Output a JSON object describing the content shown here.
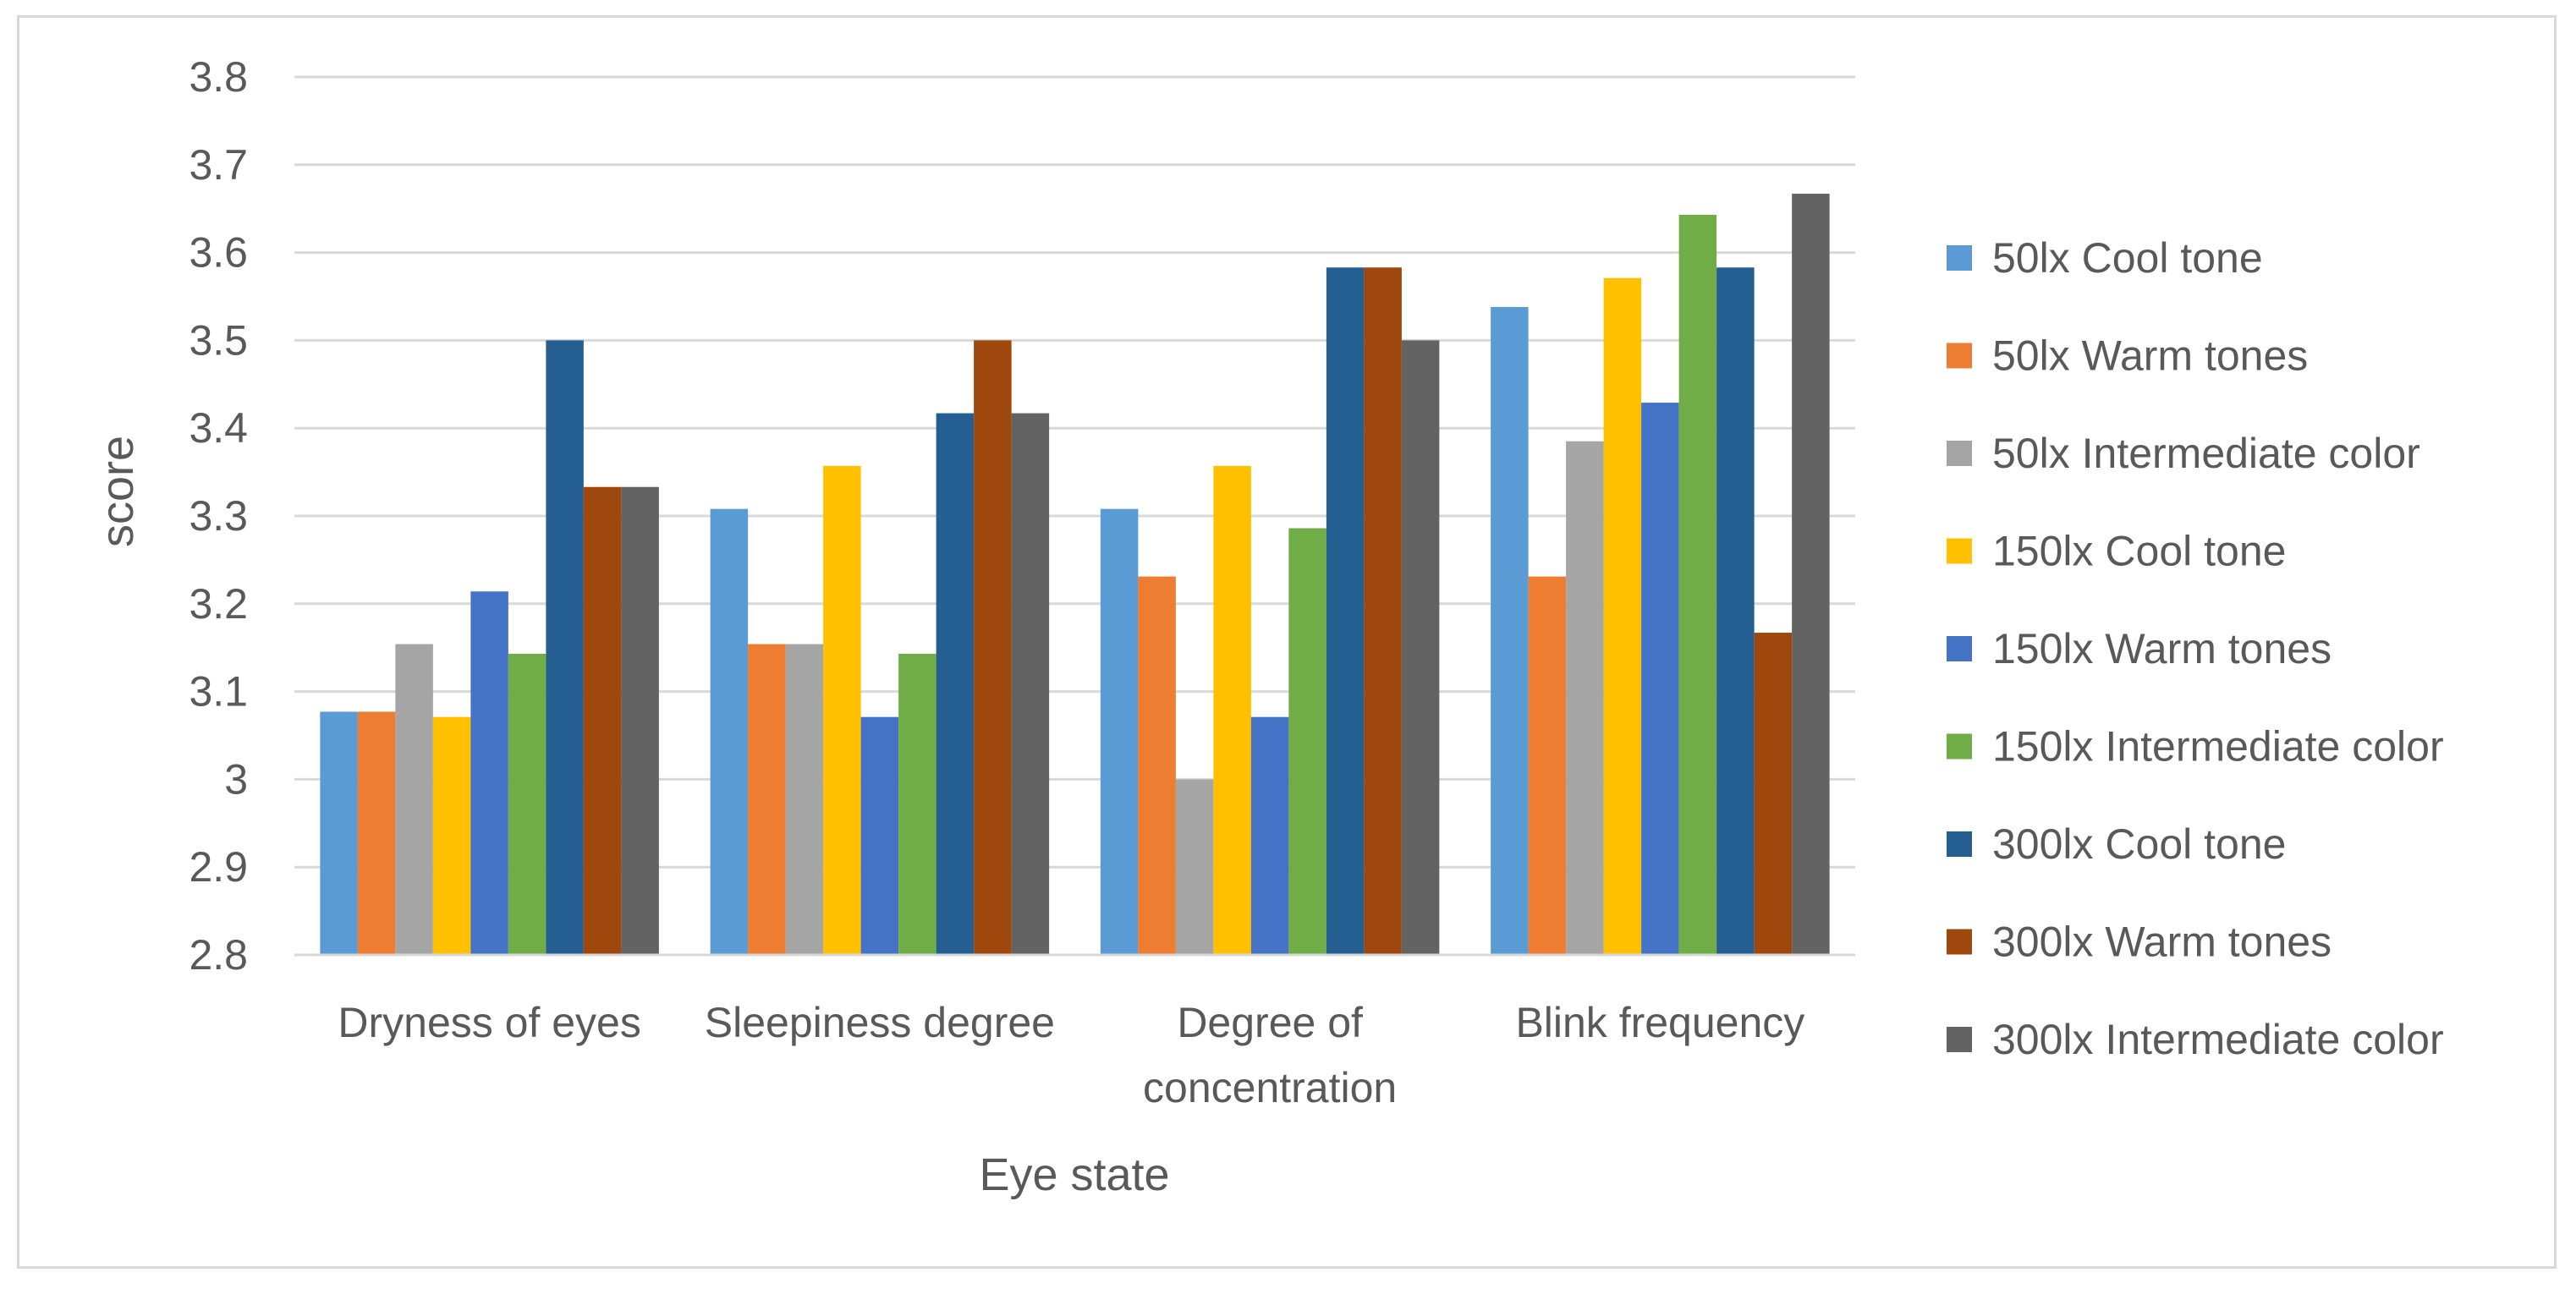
{
  "chart_data": {
    "type": "bar",
    "title": "",
    "xlabel": "Eye state",
    "ylabel": "score",
    "ylim": [
      2.8,
      3.8
    ],
    "yticks": [
      {
        "value": 2.8,
        "label": "2.8"
      },
      {
        "value": 2.9,
        "label": "2.9"
      },
      {
        "value": 3.0,
        "label": "3"
      },
      {
        "value": 3.1,
        "label": "3.1"
      },
      {
        "value": 3.2,
        "label": "3.2"
      },
      {
        "value": 3.3,
        "label": "3.3"
      },
      {
        "value": 3.4,
        "label": "3.4"
      },
      {
        "value": 3.5,
        "label": "3.5"
      },
      {
        "value": 3.6,
        "label": "3.6"
      },
      {
        "value": 3.7,
        "label": "3.7"
      },
      {
        "value": 3.8,
        "label": "3.8"
      }
    ],
    "grid": true,
    "legend_position": "right",
    "categories": [
      [
        "Dryness of eyes"
      ],
      [
        "Sleepiness degree"
      ],
      [
        "Degree of",
        "concentration"
      ],
      [
        "Blink frequency"
      ]
    ],
    "series": [
      {
        "name": "50lx Cool tone",
        "color": "#5B9BD5",
        "values": [
          3.077,
          3.308,
          3.308,
          3.538
        ]
      },
      {
        "name": "50lx Warm tones",
        "color": "#ED7D31",
        "values": [
          3.077,
          3.154,
          3.231,
          3.231
        ]
      },
      {
        "name": "50lx Intermediate color",
        "color": "#A5A5A5",
        "values": [
          3.154,
          3.154,
          3.0,
          3.385
        ]
      },
      {
        "name": "150lx Cool tone",
        "color": "#FFC000",
        "values": [
          3.071,
          3.357,
          3.357,
          3.571
        ]
      },
      {
        "name": "150lx Warm tones",
        "color": "#4472C4",
        "values": [
          3.214,
          3.071,
          3.071,
          3.429
        ]
      },
      {
        "name": "150lx Intermediate color",
        "color": "#70AD47",
        "values": [
          3.143,
          3.143,
          3.286,
          3.643
        ]
      },
      {
        "name": "300lx Cool tone",
        "color": "#255E91",
        "values": [
          3.5,
          3.417,
          3.583,
          3.583
        ]
      },
      {
        "name": "300lx Warm tones",
        "color": "#9E480E",
        "values": [
          3.333,
          3.5,
          3.583,
          3.167
        ]
      },
      {
        "name": "300lx Intermediate color",
        "color": "#636363",
        "values": [
          3.333,
          3.417,
          3.5,
          3.667
        ]
      }
    ]
  }
}
